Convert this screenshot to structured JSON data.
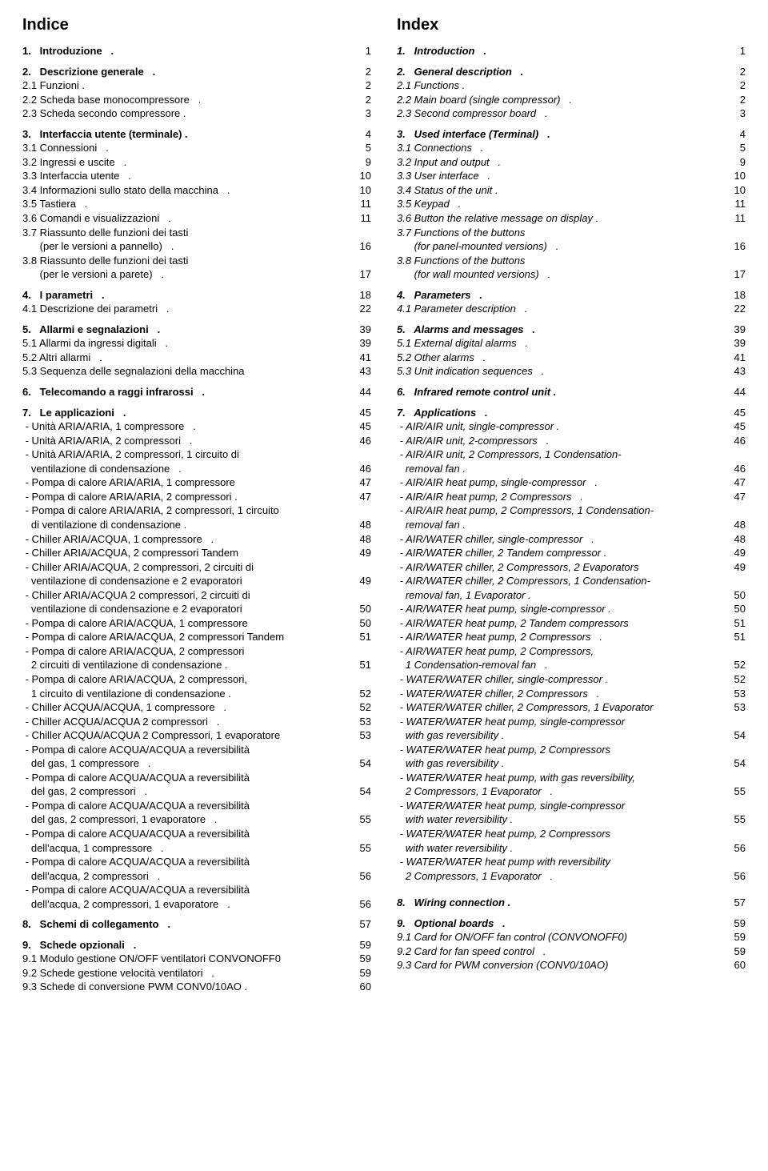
{
  "left": {
    "title": "Indice",
    "groups": [
      [
        {
          "t": "1.   Introduzione   .",
          "p": "1",
          "s": "bold"
        }
      ],
      [
        {
          "t": "2.   Descrizione generale   .",
          "p": "2",
          "s": "bold"
        },
        {
          "t": "2.1 Funzioni .",
          "p": "2"
        },
        {
          "t": "2.2 Scheda base monocompressore   .",
          "p": "2"
        },
        {
          "t": "2.3 Scheda secondo compressore .",
          "p": "3"
        }
      ],
      [
        {
          "t": "3.   Interfaccia utente (terminale) .",
          "p": "4",
          "s": "bold"
        },
        {
          "t": "3.1 Connessioni   .",
          "p": "5"
        },
        {
          "t": "3.2 Ingressi e uscite   .",
          "p": "9"
        },
        {
          "t": "3.3 Interfaccia utente   .",
          "p": "10"
        },
        {
          "t": "3.4 Informazioni sullo stato della macchina   .",
          "p": "10"
        },
        {
          "t": "3.5 Tastiera   .",
          "p": "11"
        },
        {
          "t": "3.6 Comandi e visualizzazioni   .",
          "p": "11"
        },
        {
          "t": "3.7 Riassunto delle funzioni dei tasti",
          "p": ""
        },
        {
          "t": "      (per le versioni a pannello)   .",
          "p": "16"
        },
        {
          "t": "3.8 Riassunto delle funzioni dei tasti",
          "p": ""
        },
        {
          "t": "      (per le versioni a parete)   .",
          "p": "17"
        }
      ],
      [
        {
          "t": "4.   I parametri   .",
          "p": "18",
          "s": "bold"
        },
        {
          "t": "4.1 Descrizione dei parametri   .",
          "p": "22"
        }
      ],
      [
        {
          "t": "5.   Allarmi e segnalazioni   .",
          "p": "39",
          "s": "bold"
        },
        {
          "t": "5.1 Allarmi da ingressi digitali   .",
          "p": "39"
        },
        {
          "t": "5.2 Altri allarmi   .",
          "p": "41"
        },
        {
          "t": "5.3 Sequenza delle segnalazioni della macchina",
          "p": "43"
        }
      ],
      [
        {
          "t": "6.   Telecomando a raggi infrarossi   .",
          "p": "44",
          "s": "bold"
        }
      ],
      [
        {
          "t": "7.   Le applicazioni   .",
          "p": "45",
          "s": "bold"
        },
        {
          "t": " - Unità ARIA/ARIA, 1 compressore   .",
          "p": "45"
        },
        {
          "t": " - Unità ARIA/ARIA, 2 compressori   .",
          "p": "46"
        },
        {
          "t": " - Unità ARIA/ARIA, 2 compressori, 1 circuito di",
          "p": ""
        },
        {
          "t": "   ventilazione di condensazione   .",
          "p": "46"
        },
        {
          "t": " - Pompa di calore ARIA/ARIA, 1 compressore",
          "p": "47"
        },
        {
          "t": " - Pompa di calore ARIA/ARIA, 2 compressori .",
          "p": "47"
        },
        {
          "t": " - Pompa di calore ARIA/ARIA, 2 compressori, 1 circuito",
          "p": ""
        },
        {
          "t": "   di ventilazione di condensazione .",
          "p": "48"
        },
        {
          "t": " - Chiller ARIA/ACQUA, 1 compressore   .",
          "p": "48"
        },
        {
          "t": " - Chiller ARIA/ACQUA, 2 compressori Tandem",
          "p": "49"
        },
        {
          "t": " - Chiller ARIA/ACQUA, 2 compressori, 2 circuiti di",
          "p": ""
        },
        {
          "t": "   ventilazione di condensazione e 2 evaporatori",
          "p": "49"
        },
        {
          "t": " - Chiller ARIA/ACQUA 2 compressori, 2 circuiti di",
          "p": ""
        },
        {
          "t": "   ventilazione di condensazione e 2 evaporatori",
          "p": "50"
        },
        {
          "t": " - Pompa di calore ARIA/ACQUA, 1 compressore",
          "p": "50"
        },
        {
          "t": " - Pompa di calore ARIA/ACQUA, 2 compressori Tandem",
          "p": "51"
        },
        {
          "t": " - Pompa di calore ARIA/ACQUA, 2 compressori",
          "p": ""
        },
        {
          "t": "   2 circuiti di ventilazione di condensazione .",
          "p": "51"
        },
        {
          "t": " - Pompa di calore ARIA/ACQUA, 2 compressori,",
          "p": ""
        },
        {
          "t": "   1 circuito di ventilazione di condensazione .",
          "p": "52"
        },
        {
          "t": " - Chiller ACQUA/ACQUA, 1 compressore   .",
          "p": "52"
        },
        {
          "t": " - Chiller ACQUA/ACQUA 2 compressori   .",
          "p": "53"
        },
        {
          "t": " - Chiller ACQUA/ACQUA 2 Compressori, 1 evaporatore",
          "p": "53"
        },
        {
          "t": " - Pompa di calore ACQUA/ACQUA a reversibilità",
          "p": ""
        },
        {
          "t": "   del gas, 1 compressore   .",
          "p": "54"
        },
        {
          "t": " - Pompa di calore ACQUA/ACQUA a reversibilità",
          "p": ""
        },
        {
          "t": "   del gas, 2 compressori   .",
          "p": "54"
        },
        {
          "t": " - Pompa di calore ACQUA/ACQUA a reversibilità",
          "p": ""
        },
        {
          "t": "   del gas, 2 compressori, 1 evaporatore   .",
          "p": "55"
        },
        {
          "t": " - Pompa di calore ACQUA/ACQUA a reversibilità",
          "p": ""
        },
        {
          "t": "   dell'acqua, 1 compressore   .",
          "p": "55"
        },
        {
          "t": " - Pompa di calore ACQUA/ACQUA a reversibilità",
          "p": ""
        },
        {
          "t": "   dell'acqua, 2 compressori   .",
          "p": "56"
        },
        {
          "t": " - Pompa di calore ACQUA/ACQUA a reversibilità",
          "p": ""
        },
        {
          "t": "   dell'acqua, 2 compressori, 1 evaporatore   .",
          "p": "56"
        }
      ],
      [
        {
          "t": "8.   Schemi di collegamento   .",
          "p": "57",
          "s": "bold"
        }
      ],
      [
        {
          "t": "9.   Schede opzionali   .",
          "p": "59",
          "s": "bold"
        },
        {
          "t": "9.1 Modulo gestione ON/OFF ventilatori CONVONOFF0",
          "p": "59"
        },
        {
          "t": "9.2 Schede gestione velocità ventilatori   .",
          "p": "59"
        },
        {
          "t": "9.3 Schede di conversione PWM CONV0/10AO .",
          "p": "60"
        }
      ]
    ]
  },
  "right": {
    "title": "Index",
    "groups": [
      [
        {
          "t": "1.   Introduction   .",
          "p": "1",
          "s": "boldital"
        }
      ],
      [
        {
          "t": "2.   General description   .",
          "p": "2",
          "s": "boldital"
        },
        {
          "t": "2.1 Functions .",
          "p": "2",
          "s": "italic"
        },
        {
          "t": "2.2 Main board (single compressor)   .",
          "p": "2",
          "s": "italic"
        },
        {
          "t": "2.3 Second compressor board   .",
          "p": "3",
          "s": "italic"
        }
      ],
      [
        {
          "t": "3.   Used interface (Terminal)   .",
          "p": "4",
          "s": "boldital"
        },
        {
          "t": "3.1 Connections   .",
          "p": "5",
          "s": "italic"
        },
        {
          "t": "3.2 Input and output   .",
          "p": "9",
          "s": "italic"
        },
        {
          "t": "3.3 User interface   .",
          "p": "10",
          "s": "italic"
        },
        {
          "t": "3.4 Status of the unit .",
          "p": "10",
          "s": "italic"
        },
        {
          "t": "3.5 Keypad   .",
          "p": "11",
          "s": "italic"
        },
        {
          "t": "3.6 Button the relative message on display .",
          "p": "11",
          "s": "italic"
        },
        {
          "t": "3.7 Functions of the buttons",
          "p": "",
          "s": "italic"
        },
        {
          "t": "      (for panel-mounted versions)   .",
          "p": "16",
          "s": "italic"
        },
        {
          "t": "3.8 Functions of the buttons",
          "p": "",
          "s": "italic"
        },
        {
          "t": "      (for wall mounted versions)   .",
          "p": "17",
          "s": "italic"
        }
      ],
      [
        {
          "t": "4.   Parameters   .",
          "p": "18",
          "s": "boldital"
        },
        {
          "t": "4.1 Parameter description   .",
          "p": "22",
          "s": "italic"
        }
      ],
      [
        {
          "t": "5.   Alarms and messages   .",
          "p": "39",
          "s": "boldital"
        },
        {
          "t": "5.1 External digital alarms   .",
          "p": "39",
          "s": "italic"
        },
        {
          "t": "5.2 Other alarms   .",
          "p": "41",
          "s": "italic"
        },
        {
          "t": "5.3 Unit indication sequences   .",
          "p": "43",
          "s": "italic"
        }
      ],
      [
        {
          "t": "6.   Infrared remote control unit .",
          "p": "44",
          "s": "boldital"
        }
      ],
      [
        {
          "t": "7.   Applications   .",
          "p": "45",
          "s": "boldital"
        },
        {
          "t": " - AIR/AIR unit, single-compressor .",
          "p": "45",
          "s": "italic"
        },
        {
          "t": " - AIR/AIR unit, 2-compressors   .",
          "p": "46",
          "s": "italic"
        },
        {
          "t": " - AIR/AIR unit, 2 Compressors, 1 Condensation-",
          "p": "",
          "s": "italic"
        },
        {
          "t": "   removal fan .",
          "p": "46",
          "s": "italic"
        },
        {
          "t": " - AIR/AIR heat pump, single-compressor   .",
          "p": "47",
          "s": "italic"
        },
        {
          "t": " - AIR/AIR heat pump, 2 Compressors   .",
          "p": "47",
          "s": "italic"
        },
        {
          "t": " - AIR/AIR heat pump, 2 Compressors, 1 Condensation-",
          "p": "",
          "s": "italic"
        },
        {
          "t": "   removal fan .",
          "p": "48",
          "s": "italic"
        },
        {
          "t": " - AIR/WATER chiller, single-compressor   .",
          "p": "48",
          "s": "italic"
        },
        {
          "t": " - AIR/WATER chiller, 2 Tandem compressor .",
          "p": "49",
          "s": "italic"
        },
        {
          "t": " - AIR/WATER chiller, 2 Compressors, 2 Evaporators",
          "p": "49",
          "s": "italic"
        },
        {
          "t": " - AIR/WATER chiller, 2 Compressors, 1 Condensation-",
          "p": "",
          "s": "italic"
        },
        {
          "t": "   removal fan, 1 Evaporator .",
          "p": "50",
          "s": "italic"
        },
        {
          "t": " - AIR/WATER heat pump, single-compressor .",
          "p": "50",
          "s": "italic"
        },
        {
          "t": " - AIR/WATER heat pump, 2 Tandem compressors",
          "p": "51",
          "s": "italic"
        },
        {
          "t": " - AIR/WATER heat pump, 2 Compressors   .",
          "p": "51",
          "s": "italic"
        },
        {
          "t": " - AIR/WATER heat pump, 2 Compressors,",
          "p": "",
          "s": "italic"
        },
        {
          "t": "   1 Condensation-removal fan   .",
          "p": "52",
          "s": "italic"
        },
        {
          "t": " - WATER/WATER chiller, single-compressor .",
          "p": "52",
          "s": "italic"
        },
        {
          "t": " - WATER/WATER chiller, 2 Compressors   .",
          "p": "53",
          "s": "italic"
        },
        {
          "t": " - WATER/WATER chiller, 2 Compressors, 1 Evaporator",
          "p": "53",
          "s": "italic"
        },
        {
          "t": " - WATER/WATER heat pump, single-compressor",
          "p": "",
          "s": "italic"
        },
        {
          "t": "   with gas reversibility .",
          "p": "54",
          "s": "italic"
        },
        {
          "t": " - WATER/WATER heat pump, 2 Compressors",
          "p": "",
          "s": "italic"
        },
        {
          "t": "   with gas reversibility .",
          "p": "54",
          "s": "italic"
        },
        {
          "t": " - WATER/WATER heat pump, with gas reversibility,",
          "p": "",
          "s": "italic"
        },
        {
          "t": "   2 Compressors, 1 Evaporator   .",
          "p": "55",
          "s": "italic"
        },
        {
          "t": " - WATER/WATER heat pump, single-compressor",
          "p": "",
          "s": "italic"
        },
        {
          "t": "   with water reversibility .",
          "p": "55",
          "s": "italic"
        },
        {
          "t": " - WATER/WATER heat pump, 2 Compressors",
          "p": "",
          "s": "italic"
        },
        {
          "t": "   with water reversibility .",
          "p": "56",
          "s": "italic"
        },
        {
          "t": " - WATER/WATER heat pump with reversibility",
          "p": "",
          "s": "italic"
        },
        {
          "t": "   2 Compressors, 1 Evaporator   .",
          "p": "56",
          "s": "italic"
        }
      ],
      [
        {
          "spacer": true
        },
        {
          "t": "8.   Wiring connection .",
          "p": "57",
          "s": "boldital"
        }
      ],
      [
        {
          "t": "9.   Optional boards   .",
          "p": "59",
          "s": "boldital"
        },
        {
          "t": "9.1 Card for ON/OFF fan control (CONVONOFF0)",
          "p": "59",
          "s": "italic"
        },
        {
          "t": "9.2 Card for fan speed control   .",
          "p": "59",
          "s": "italic"
        },
        {
          "t": "9.3 Card for PWM conversion (CONV0/10AO)",
          "p": "60",
          "s": "italic"
        }
      ]
    ]
  }
}
